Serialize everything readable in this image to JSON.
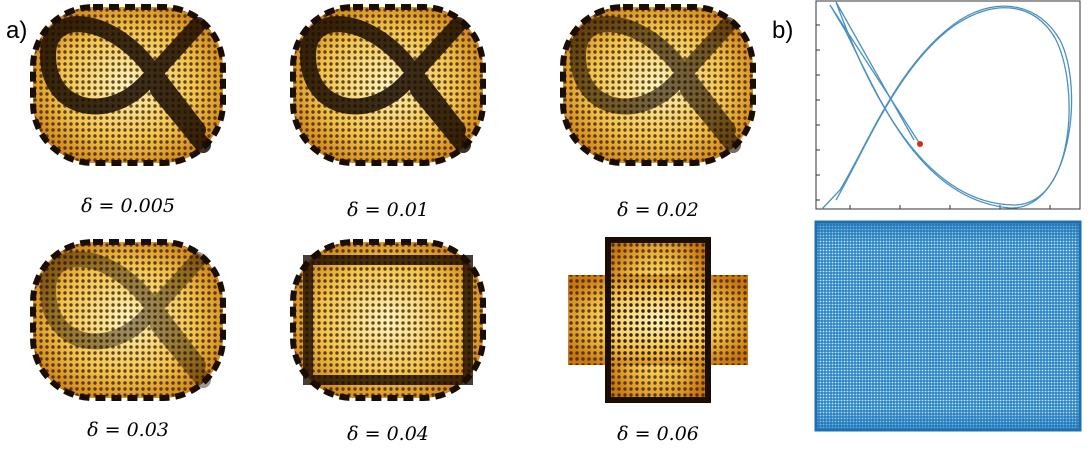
{
  "panel_a": {
    "label": "a)",
    "captions": [
      "δ = 0.005",
      "δ = 0.01",
      "δ = 0.02",
      "δ = 0.03",
      "δ = 0.04",
      "δ = 0.06"
    ]
  },
  "panel_b": {
    "label": "b)"
  }
}
